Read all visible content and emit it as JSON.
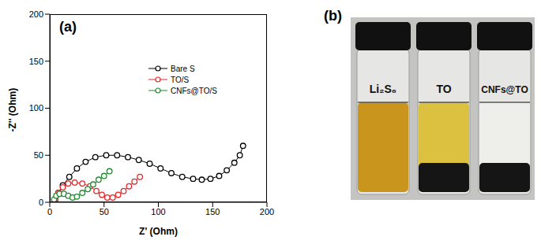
{
  "chart_data": {
    "type": "scatter",
    "annotations": [
      "(a)"
    ],
    "x_label": "Z' (Ohm)",
    "y_label": "-Z'' (Ohm)",
    "xlim": [
      0,
      200
    ],
    "xticks": [
      0,
      50,
      100,
      150,
      200
    ],
    "ylim": [
      0,
      200
    ],
    "yticks": [
      0,
      50,
      100,
      150,
      200
    ],
    "legend": "upper right",
    "marker": "open_circle",
    "line_style": "solid",
    "series": [
      {
        "name": "Bare S",
        "color": "#000000",
        "x": [
          5,
          8,
          12,
          18,
          25,
          33,
          42,
          52,
          62,
          72,
          82,
          92,
          102,
          112,
          122,
          132,
          140,
          148,
          156,
          163,
          170,
          175,
          178
        ],
        "values": [
          3,
          10,
          18,
          27,
          36,
          43,
          48,
          50,
          50,
          48,
          45,
          41,
          36,
          31,
          27,
          25,
          24,
          25,
          28,
          34,
          42,
          50,
          60
        ]
      },
      {
        "name": "TO/S",
        "color": "#e8262a",
        "x": [
          5,
          8,
          12,
          17,
          23,
          30,
          37,
          43,
          48,
          53,
          58,
          63,
          68,
          73,
          78,
          83
        ],
        "values": [
          3,
          10,
          16,
          20,
          21,
          20,
          17,
          12,
          8,
          5,
          5,
          8,
          12,
          17,
          22,
          27
        ]
      },
      {
        "name": "CNFs@TO/S",
        "color": "#1e8c2e",
        "x": [
          4,
          6,
          9,
          13,
          17,
          21,
          25,
          30,
          35,
          40,
          45,
          50,
          55
        ],
        "values": [
          3,
          7,
          9,
          9,
          7,
          5,
          6,
          10,
          14,
          19,
          24,
          28,
          33
        ]
      }
    ]
  },
  "photo": {
    "panel_label": "(b)",
    "vials": [
      {
        "label": "Li₂S₆"
      },
      {
        "label": "TO"
      },
      {
        "label": "CNFs@TO"
      }
    ]
  }
}
